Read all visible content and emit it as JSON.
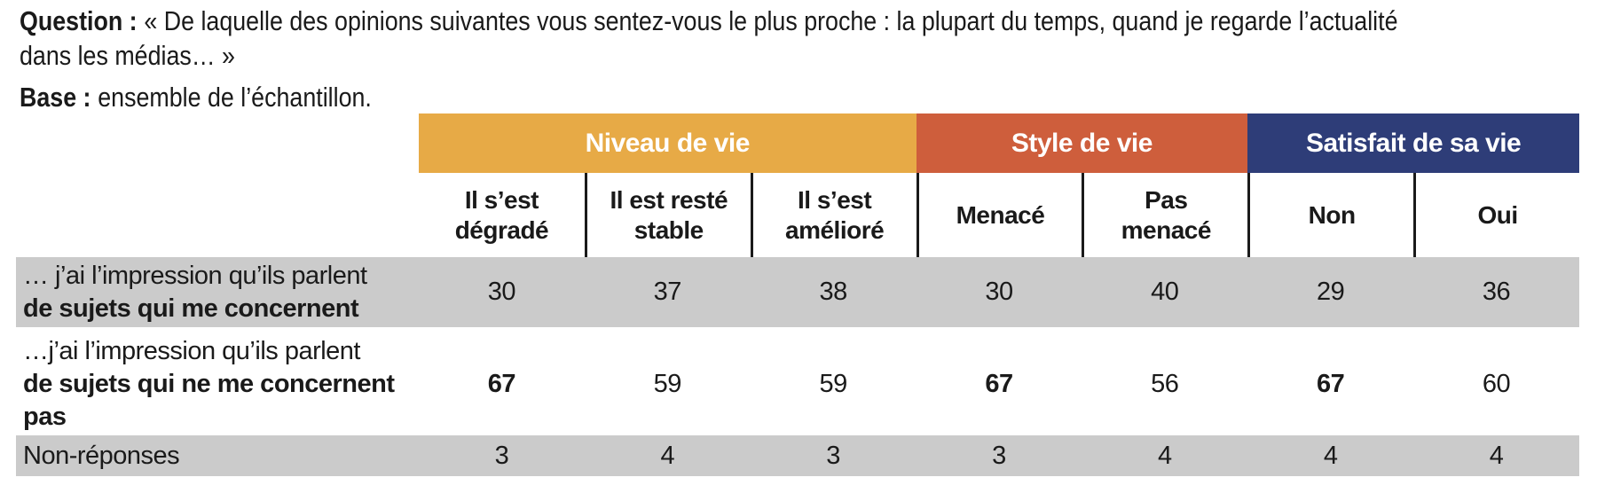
{
  "colors": {
    "niveau_band": "#E7AA46",
    "style_band": "#CE5E3C",
    "satisfait_band": "#2E3D78",
    "row_gray": "#CBCBCB",
    "text": "#1A1A1A"
  },
  "header": {
    "question_label": "Question :",
    "question_line1": "« De laquelle des opinions suivantes vous sentez-vous le plus proche : la plupart du temps, quand je regarde l’actualité",
    "question_line2": "dans les médias… »",
    "base_label": "Base :",
    "base_text": "ensemble de l’échantillon."
  },
  "table": {
    "groups": [
      {
        "label": "Niveau de vie",
        "span": 3
      },
      {
        "label": "Style de vie",
        "span": 2
      },
      {
        "label": "Satisfait de sa vie",
        "span": 2
      }
    ],
    "columns": [
      {
        "line1": "Il s’est",
        "line2": "dégradé"
      },
      {
        "line1": "Il est resté",
        "line2": "stable"
      },
      {
        "line1": "Il s’est",
        "line2": "amélioré"
      },
      {
        "line1": "Menacé",
        "line2": ""
      },
      {
        "line1": "Pas",
        "line2": "menacé"
      },
      {
        "line1": "Non",
        "line2": ""
      },
      {
        "line1": "Oui",
        "line2": ""
      }
    ],
    "rows": [
      {
        "label_line1": "… j’ai l’impression qu’ils parlent",
        "label_line2": "de sujets qui me concernent",
        "label_line3": "",
        "values": [
          "30",
          "37",
          "38",
          "30",
          "40",
          "29",
          "36"
        ]
      },
      {
        "label_line1": "…j’ai l’impression qu’ils parlent",
        "label_line2": "de sujets qui ne me concernent",
        "label_line3": "pas",
        "values": [
          "67",
          "59",
          "59",
          "67",
          "56",
          "67",
          "60"
        ]
      },
      {
        "label_line1": "Non-réponses",
        "label_line2": "",
        "label_line3": "",
        "values": [
          "3",
          "4",
          "3",
          "3",
          "4",
          "4",
          "4"
        ]
      }
    ]
  }
}
